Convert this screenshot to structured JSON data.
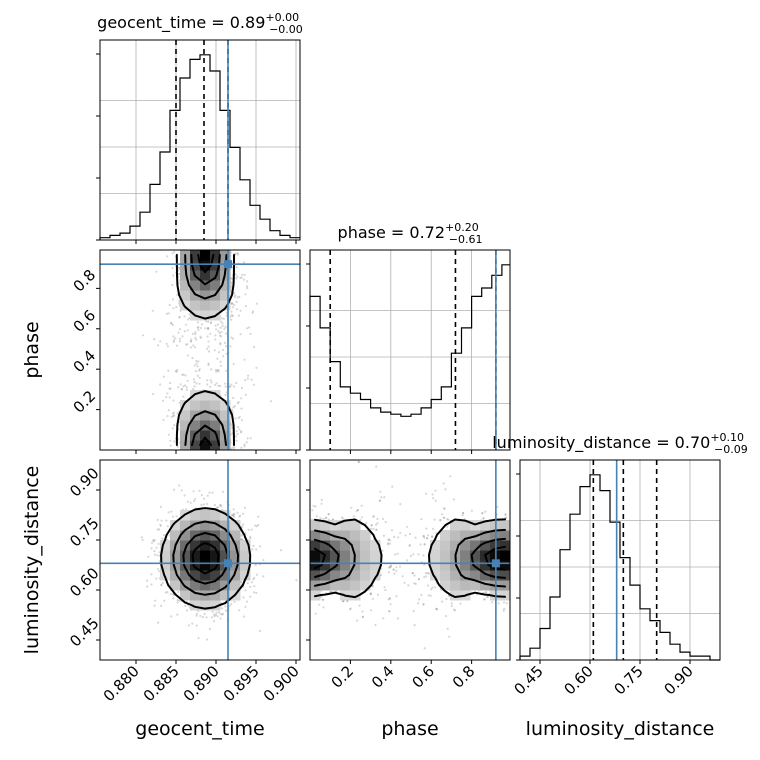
{
  "chart_data": {
    "type": "corner",
    "parameters": [
      {
        "name": "geocent_time",
        "xlabel": "geocent_time",
        "title": {
          "prefix": "geocent_time = 0.89",
          "sup": "+0.00",
          "sub": "−0.00"
        },
        "range": [
          0.8755,
          0.9005
        ],
        "ticks": [
          "0.880",
          "0.885",
          "0.890",
          "0.895",
          "0.900"
        ],
        "tick_values": [
          0.88,
          0.885,
          0.89,
          0.895,
          0.9
        ],
        "quantiles": [
          0.885,
          0.8885,
          0.8915
        ],
        "truth": 0.8915,
        "histogram": {
          "edges_start": 0.8755,
          "bin_width": 0.00125,
          "counts": [
            1,
            2,
            3,
            6,
            12,
            24,
            38,
            56,
            70,
            78,
            80,
            73,
            56,
            40,
            26,
            15,
            9,
            4,
            2,
            1
          ]
        }
      },
      {
        "name": "phase",
        "ylabel": "phase",
        "xlabel": "phase",
        "title": {
          "prefix": "phase = 0.72",
          "sup": "+0.20",
          "sub": "−0.61"
        },
        "range": [
          0.0,
          0.99
        ],
        "ticks": [
          "0.2",
          "0.4",
          "0.6",
          "0.8"
        ],
        "tick_values": [
          0.2,
          0.4,
          0.6,
          0.8
        ],
        "quantiles": [
          0.1,
          0.72,
          0.92
        ],
        "truth": 0.92,
        "histogram": {
          "edges_start": 0.0,
          "bin_width": 0.05,
          "counts": [
            73,
            58,
            42,
            30,
            27,
            24,
            20,
            18,
            17,
            16,
            17,
            20,
            24,
            30,
            46,
            58,
            73,
            77,
            83,
            88
          ]
        }
      },
      {
        "name": "luminosity_distance",
        "ylabel": "luminosity_distance",
        "xlabel": "luminosity_distance",
        "title": {
          "prefix": "luminosity_distance = 0.70",
          "sup": "+0.10",
          "sub": "−0.09"
        },
        "range": [
          0.39,
          0.99
        ],
        "ticks": [
          "0.45",
          "0.60",
          "0.75",
          "0.90"
        ],
        "tick_values": [
          0.45,
          0.6,
          0.75,
          0.9
        ],
        "quantiles": [
          0.61,
          0.7,
          0.8
        ],
        "truth": 0.68,
        "histogram": {
          "edges_start": 0.39,
          "bin_width": 0.03,
          "counts": [
            1,
            3,
            8,
            16,
            28,
            37,
            44,
            47,
            43,
            35,
            26,
            19,
            13,
            10,
            7,
            4,
            2,
            1,
            1,
            0
          ]
        }
      }
    ],
    "pairs": [
      {
        "x": "geocent_time",
        "y": "phase"
      },
      {
        "x": "geocent_time",
        "y": "luminosity_distance"
      },
      {
        "x": "phase",
        "y": "luminosity_distance"
      }
    ],
    "truth_color": "#4682b4",
    "grid": true
  }
}
